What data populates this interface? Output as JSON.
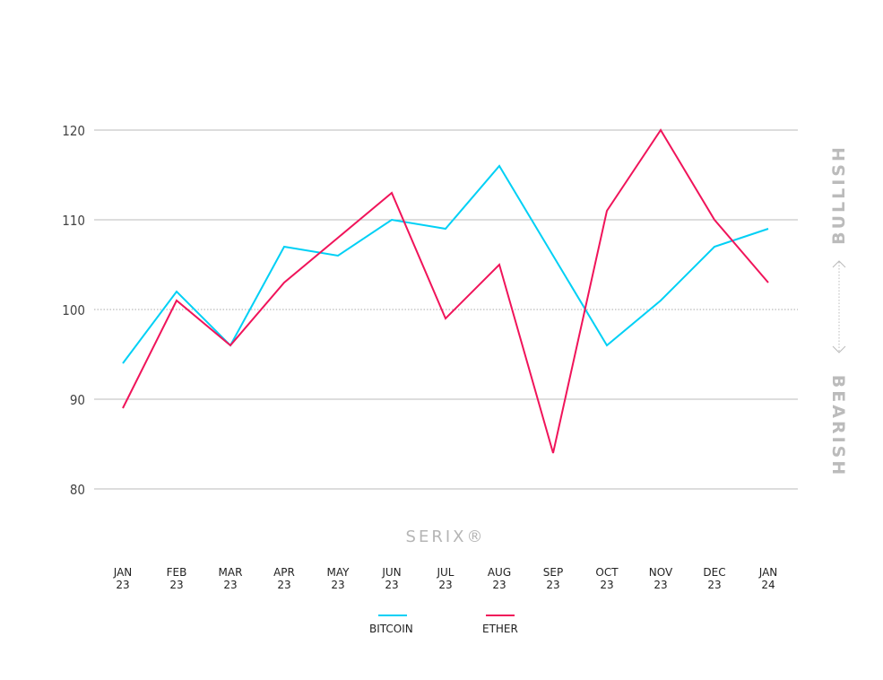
{
  "chart_data": {
    "type": "line",
    "categories": [
      "JAN 23",
      "FEB 23",
      "MAR 23",
      "APR 23",
      "MAY 23",
      "JUN 23",
      "JUL 23",
      "AUG 23",
      "SEP 23",
      "OCT 23",
      "NOV 23",
      "DEC 23",
      "JAN 24"
    ],
    "series": [
      {
        "name": "BITCOIN",
        "color": "#00d0f5",
        "values": [
          94,
          102,
          96,
          107,
          106,
          110,
          109,
          116,
          106,
          96,
          101,
          107,
          109
        ]
      },
      {
        "name": "ETHER",
        "color": "#f0145a",
        "values": [
          89,
          101,
          96,
          103,
          108,
          113,
          99,
          105,
          84,
          111,
          120,
          110,
          103
        ]
      }
    ],
    "yticks": [
      80,
      90,
      100,
      110,
      120
    ],
    "ylim": [
      80,
      120
    ],
    "baseline": 100,
    "grid": true,
    "legend_position": "bottom",
    "side_labels": {
      "top": "BULLISH",
      "bottom": "BEARISH"
    },
    "brand": "SERIX®"
  }
}
